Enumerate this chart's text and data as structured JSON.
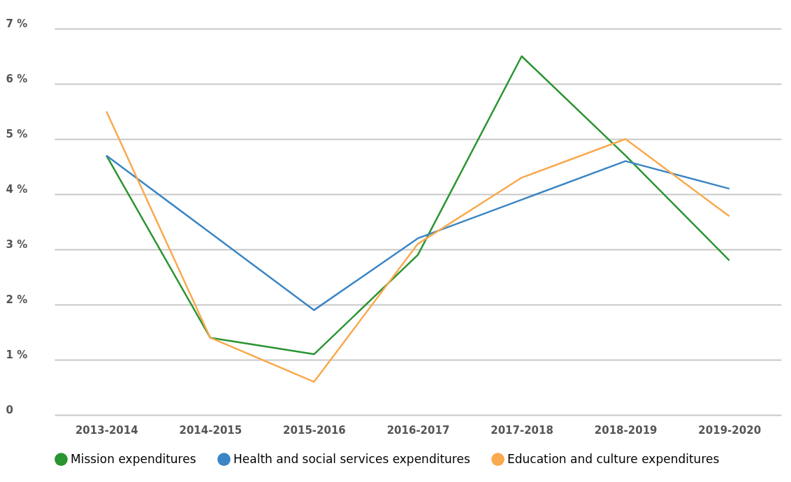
{
  "chart_data": {
    "type": "line",
    "categories": [
      "2013-2014",
      "2014-2015",
      "2015-2016",
      "2016-2017",
      "2017-2018",
      "2018-2019",
      "2019-2020"
    ],
    "series": [
      {
        "name": "Mission expenditures",
        "color": "#2a9431",
        "values": [
          4.7,
          1.4,
          1.1,
          2.9,
          6.5,
          4.7,
          2.8
        ]
      },
      {
        "name": "Health and social services expenditures",
        "color": "#3a85c4",
        "values": [
          4.7,
          3.3,
          1.9,
          3.2,
          3.9,
          4.6,
          4.1
        ]
      },
      {
        "name": "Education and culture expenditures",
        "color": "#f9a94e",
        "values": [
          5.5,
          1.4,
          0.6,
          3.1,
          4.3,
          5.0,
          3.6
        ]
      }
    ],
    "ylim": [
      0,
      7
    ],
    "yticks": [
      0,
      {
        "value": 1,
        "label": "1 %"
      },
      {
        "value": 2,
        "label": "2 %"
      },
      {
        "value": 3,
        "label": "3 %"
      },
      {
        "value": 4,
        "label": "4 %"
      },
      {
        "value": 5,
        "label": "5 %"
      },
      {
        "value": 6,
        "label": "6 %"
      },
      {
        "value": 7,
        "label": "7 %"
      }
    ],
    "grid": "y",
    "legend": "bottom"
  }
}
